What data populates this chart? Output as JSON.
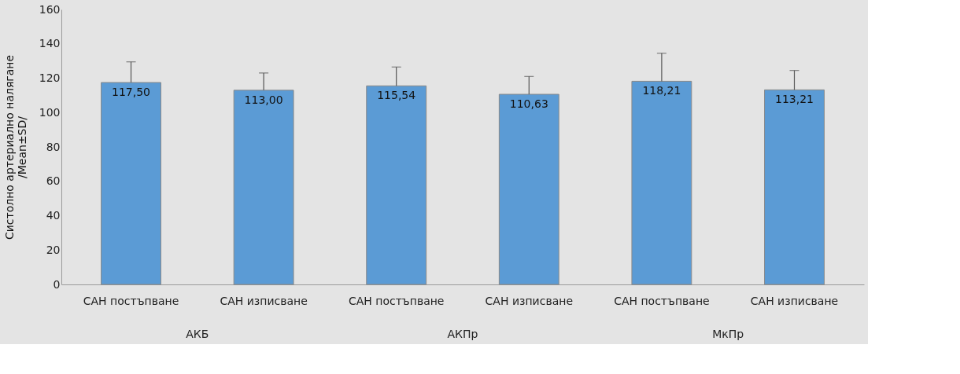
{
  "chart_data": {
    "type": "bar",
    "ylabel": "Систолно артериално налягане\n/Mean±SD/",
    "categories": [
      "САН постъпване",
      "САН изписване",
      "САН постъпване",
      "САН изписване",
      "САН постъпване",
      "САН изписване"
    ],
    "values": [
      117.5,
      113.0,
      115.54,
      110.63,
      118.21,
      113.21
    ],
    "value_labels": [
      "117,50",
      "113,00",
      "115,54",
      "110,63",
      "118,21",
      "113,21"
    ],
    "errors": [
      [
        117.5,
        129.5
      ],
      [
        113.0,
        123
      ],
      [
        115.54,
        126.5
      ],
      [
        110.63,
        121
      ],
      [
        118.21,
        134.5
      ],
      [
        113.21,
        124.5
      ]
    ],
    "color": "#5b9bd5",
    "ylim": [
      0,
      160
    ],
    "yticks": [
      0,
      20,
      40,
      60,
      80,
      100,
      120,
      140,
      160
    ],
    "grid": false,
    "annotations": [
      "АКБ",
      "АКПр",
      "МкПр"
    ]
  }
}
